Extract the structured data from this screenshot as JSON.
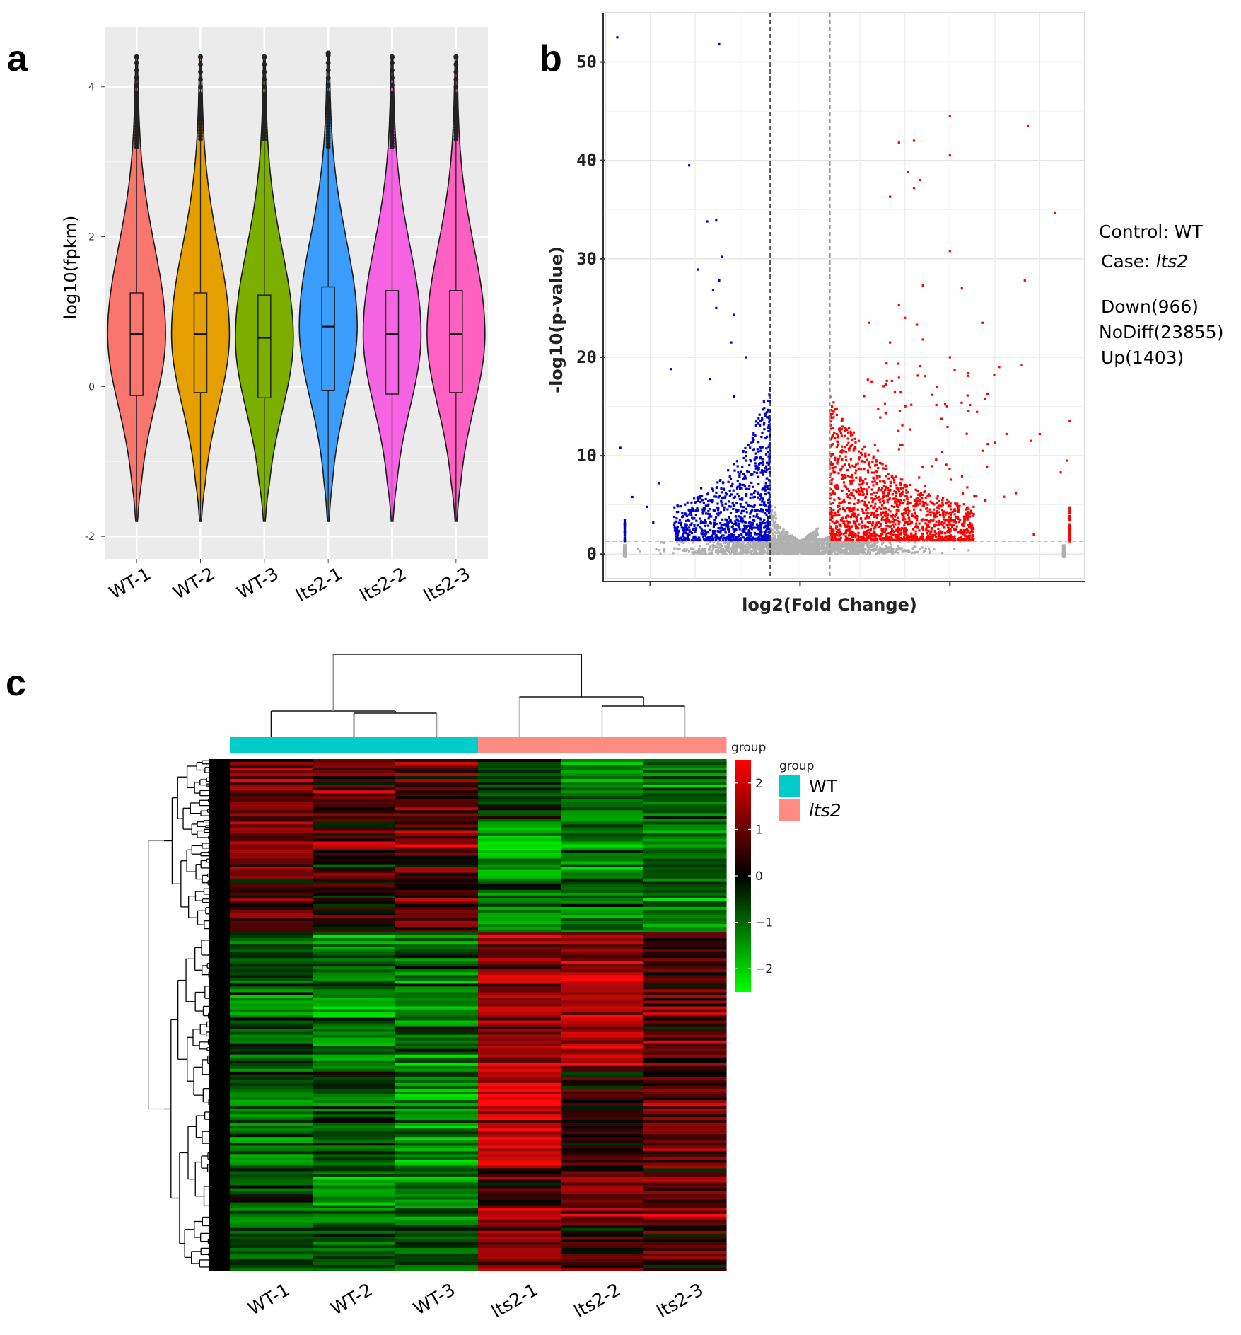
{
  "panels": [
    {
      "label": "a",
      "chart_data": {
        "type": "violin",
        "ylabel": "log10(fpkm)",
        "yticks": [
          -2,
          0,
          2,
          4
        ],
        "ylim": [
          -2.3,
          4.8
        ],
        "grid": true,
        "categories": [
          "WT-1",
          "WT-2",
          "WT-3",
          "lts2-1",
          "lts2-2",
          "lts2-3"
        ],
        "colors": [
          "#f8766d",
          "#e69f00",
          "#7cae00",
          "#3b9eff",
          "#f564e3",
          "#ff61c3"
        ],
        "medians": [
          0.7,
          0.7,
          0.65,
          0.8,
          0.7,
          0.7
        ],
        "q1": [
          -0.12,
          -0.08,
          -0.15,
          -0.05,
          -0.1,
          -0.08
        ],
        "q3": [
          1.25,
          1.25,
          1.22,
          1.33,
          1.28,
          1.28
        ],
        "whisker_low": [
          -1.8,
          -1.8,
          -1.8,
          -1.8,
          -1.8,
          -1.8
        ],
        "whisker_high": [
          4.4,
          4.4,
          4.4,
          4.45,
          4.4,
          4.4
        ],
        "outlier_top": [
          3.2,
          3.3,
          3.3,
          3.2,
          3.2,
          3.3
        ]
      }
    },
    {
      "label": "b",
      "chart_data": {
        "type": "scatter",
        "xlabel": "log2(Fold Change)",
        "ylabel": "-log10(p-value)",
        "yticks": [
          0,
          10,
          20,
          30,
          40,
          50
        ],
        "ylim": [
          -2.5,
          55
        ],
        "xlim": [
          -6.5,
          9.5
        ],
        "thresholds_x": [
          -1,
          1
        ],
        "threshold_y": 1.3,
        "series": [
          {
            "name": "Down",
            "color": "#0000cc"
          },
          {
            "name": "NoDiff",
            "color": "#b0b0b0"
          },
          {
            "name": "Up",
            "color": "#ff0000"
          }
        ]
      },
      "annotations": {
        "control_label": "Control: WT",
        "case_prefix": "Case: ",
        "case_name": "lts2",
        "down": "Down(966)",
        "nodiff": "NoDiff(23855)",
        "up": "Up(1403)"
      }
    },
    {
      "label": "c",
      "chart_data": {
        "type": "heatmap",
        "columns": [
          "WT-1",
          "WT-2",
          "WT-3",
          "lts2-1",
          "lts2-2",
          "lts2-3"
        ],
        "column_groups": [
          "WT",
          "WT",
          "WT",
          "lts2",
          "lts2",
          "lts2"
        ],
        "group_track_label": "group",
        "scale_ticks": [
          2,
          1,
          0,
          -1,
          -2
        ],
        "scale_tick_labels": [
          "2",
          "1",
          "0",
          "−1",
          "−2"
        ],
        "scale_range": [
          -2.5,
          2.5
        ],
        "scale_colors": [
          "#00ff00",
          "#000000",
          "#ff0000"
        ],
        "legend_title": "group",
        "legend": [
          {
            "name": "WT",
            "color": "#00cccc"
          },
          {
            "name": "lts2",
            "color": "#ff8c82"
          }
        ]
      }
    }
  ]
}
